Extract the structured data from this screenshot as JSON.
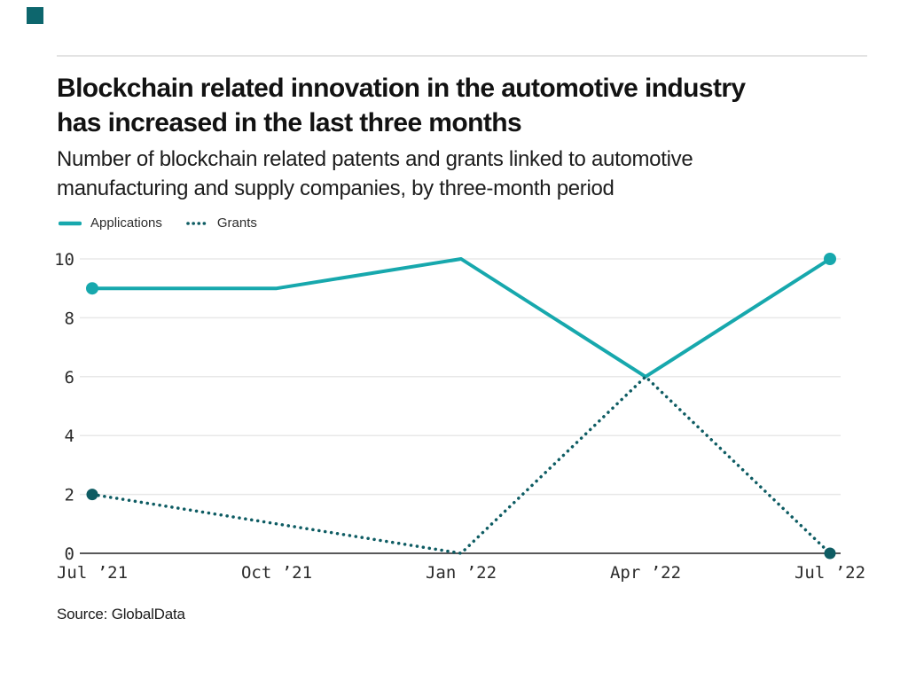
{
  "brand": {
    "color": "#0d666d"
  },
  "header": {
    "title_lines": [
      "Blockchain related innovation in the automotive industry",
      "has increased in the last three months"
    ],
    "subtitle_lines": [
      "Number of blockchain related patents and grants linked to automotive",
      "manufacturing and supply companies, by three-month period"
    ]
  },
  "legend": {
    "items": [
      {
        "label": "Applications",
        "style": "solid",
        "color": "#17a8ad"
      },
      {
        "label": "Grants",
        "style": "dotted",
        "color": "#0e5c63"
      }
    ]
  },
  "chart_data": {
    "type": "line",
    "categories": [
      "Jul ’21",
      "Oct ’21",
      "Jan ’22",
      "Apr ’22",
      "Jul ’22"
    ],
    "series": [
      {
        "name": "Applications",
        "values": [
          9,
          9,
          10,
          6,
          10
        ],
        "color": "#17a8ad",
        "line_style": "solid"
      },
      {
        "name": "Grants",
        "values": [
          2,
          1,
          0,
          6,
          0
        ],
        "color": "#0e5c63",
        "line_style": "dotted"
      }
    ],
    "yticks": [
      0,
      2,
      4,
      6,
      8,
      10
    ],
    "ylim": [
      0,
      10
    ],
    "xlabel": "",
    "ylabel": "",
    "grid": "horizontal-light",
    "baseline_color": "#58585a",
    "grid_color": "#e8e8e8",
    "legend_position": "top-left",
    "markers": "endpoints-only"
  },
  "source": {
    "text": "Source: GlobalData"
  }
}
